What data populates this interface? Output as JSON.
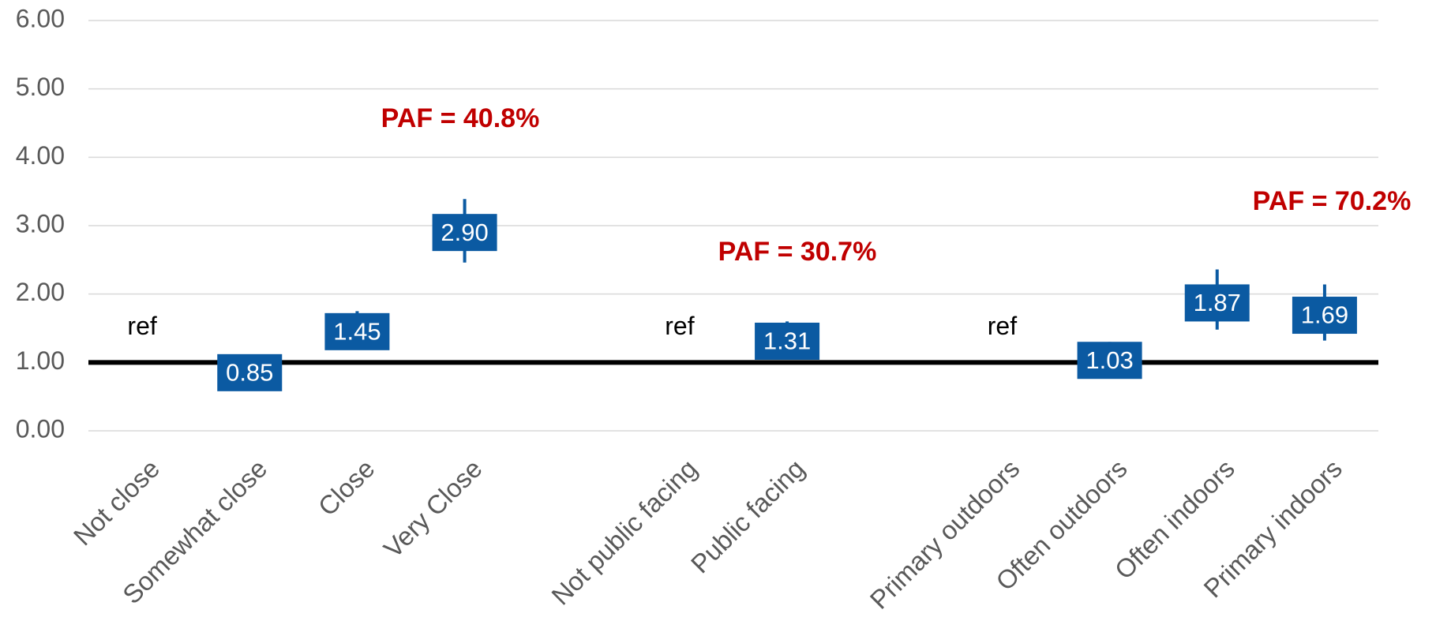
{
  "chart_data": {
    "type": "errorbar",
    "categories": [
      "Not close",
      "Somewhat close",
      "Close",
      "Very Close",
      null,
      "Not public facing",
      "Public facing",
      null,
      "Primary outdoors",
      "Often outdoors",
      "Often indoors",
      "Primary indoors"
    ],
    "values": [
      1,
      0.85,
      1.45,
      2.9,
      null,
      1,
      1.31,
      null,
      1,
      1.03,
      1.87,
      1.69
    ],
    "value_labels": [
      "ref",
      "0.85",
      "1.45",
      "2.90",
      null,
      "ref",
      "1.31",
      null,
      "ref",
      "1.03",
      "1.87",
      "1.69"
    ],
    "lower": [
      null,
      0.75,
      1.19,
      2.46,
      null,
      null,
      1.05,
      null,
      null,
      0.8,
      1.48,
      1.32
    ],
    "upper": [
      null,
      1.0,
      1.75,
      3.39,
      null,
      null,
      1.6,
      null,
      null,
      1.3,
      2.36,
      2.14
    ],
    "color": "#0b5aa2",
    "reference_line": 1,
    "annotations": [
      "PAF = 40.8%",
      "PAF = 30.7%",
      "PAF = 70.2%"
    ],
    "annotation_color": "#c00000",
    "ylim": [
      0,
      6
    ],
    "yticks": [
      {
        "value": 0,
        "label": "0.00"
      },
      {
        "value": 1,
        "label": "1.00"
      },
      {
        "value": 2,
        "label": "2.00"
      },
      {
        "value": 3,
        "label": "3.00"
      },
      {
        "value": 4,
        "label": "4.00"
      },
      {
        "value": 5,
        "label": "5.00"
      },
      {
        "value": 6,
        "label": "6.00"
      }
    ],
    "grid": true
  }
}
